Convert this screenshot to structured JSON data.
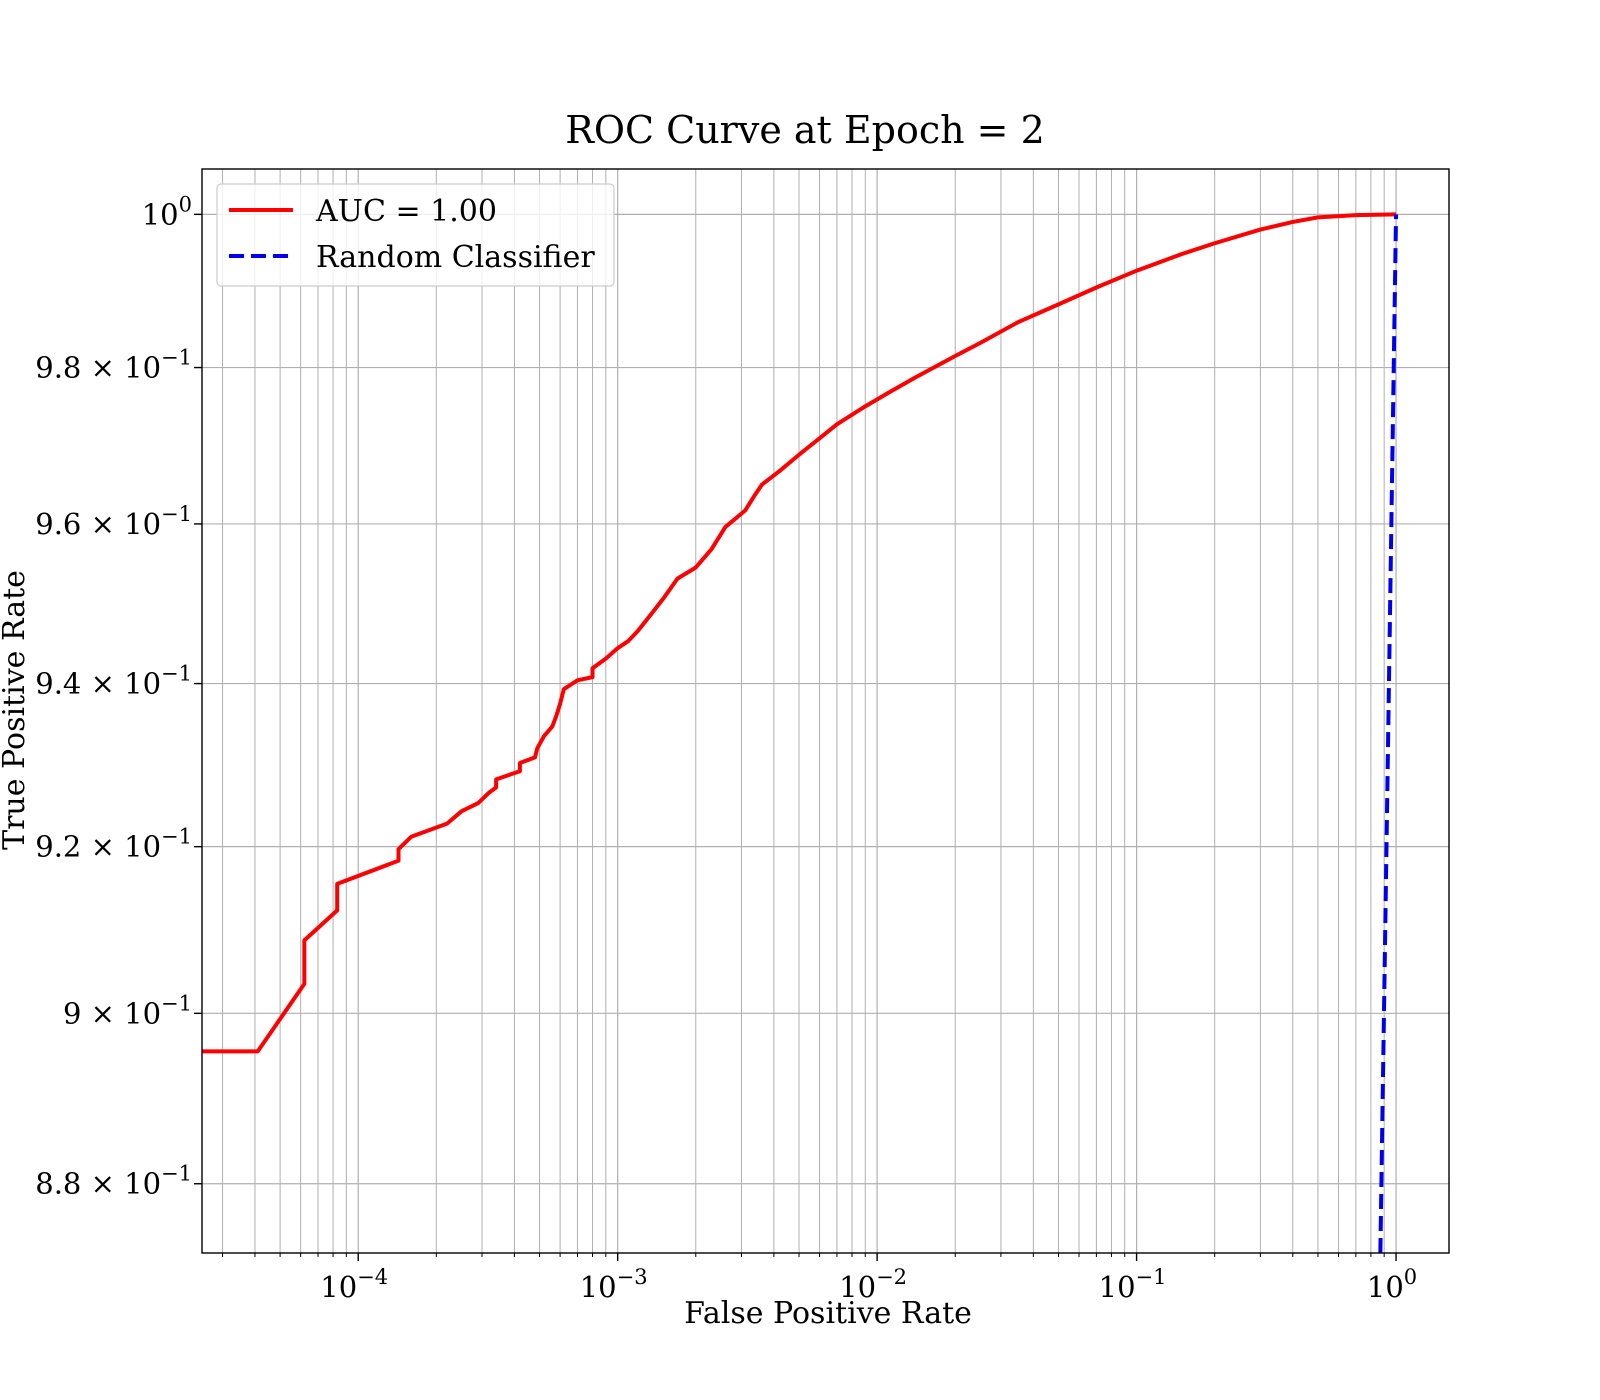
{
  "chart_data": {
    "type": "line",
    "title": "ROC Curve at Epoch = 2",
    "xlabel": "False Positive Rate",
    "ylabel": "True Positive Rate",
    "xscale": "log",
    "yscale": "log",
    "xlim": [
      2.5e-05,
      1.6
    ],
    "ylim": [
      0.872,
      1.006
    ],
    "grid": "both major and minor",
    "legend_position": "upper-left",
    "x_ticks": [
      {
        "value": 0.0001,
        "base": "10",
        "exp": "−4"
      },
      {
        "value": 0.001,
        "base": "10",
        "exp": "−3"
      },
      {
        "value": 0.01,
        "base": "10",
        "exp": "−2"
      },
      {
        "value": 0.1,
        "base": "10",
        "exp": "−1"
      },
      {
        "value": 1,
        "base": "10",
        "exp": "0"
      }
    ],
    "y_ticks": [
      {
        "value": 1.0,
        "mant": "",
        "base": "10",
        "exp": "0"
      },
      {
        "value": 0.98,
        "mant": "9.8 × ",
        "base": "10",
        "exp": "−1"
      },
      {
        "value": 0.96,
        "mant": "9.6 × ",
        "base": "10",
        "exp": "−1"
      },
      {
        "value": 0.94,
        "mant": "9.4 × ",
        "base": "10",
        "exp": "−1"
      },
      {
        "value": 0.92,
        "mant": "9.2 × ",
        "base": "10",
        "exp": "−1"
      },
      {
        "value": 0.9,
        "mant": "9 × ",
        "base": "10",
        "exp": "−1"
      },
      {
        "value": 0.88,
        "mant": "8.8 × ",
        "base": "10",
        "exp": "−1"
      }
    ],
    "series": [
      {
        "name": "AUC = 1.00",
        "color": "#ff0000",
        "style": "solid",
        "x": [
          2.5e-05,
          4.1e-05,
          6.2e-05,
          6.2e-05,
          8.3e-05,
          8.3e-05,
          0.000143,
          0.000143,
          0.00016,
          0.00022,
          0.00025,
          0.00029,
          0.00032,
          0.00034,
          0.00034,
          0.00042,
          0.00042,
          0.00048,
          0.00049,
          0.00052,
          0.00056,
          0.00058,
          0.0006,
          0.00062,
          0.0007,
          0.0008,
          0.0008,
          0.0009,
          0.001,
          0.0011,
          0.0012,
          0.00135,
          0.0015,
          0.0017,
          0.002,
          0.0023,
          0.0026,
          0.0031,
          0.0034,
          0.0036,
          0.0042,
          0.005,
          0.006,
          0.007,
          0.009,
          0.011,
          0.014,
          0.02,
          0.025,
          0.035,
          0.05,
          0.07,
          0.1,
          0.15,
          0.2,
          0.3,
          0.4,
          0.5,
          0.7,
          1.0
        ],
        "y": [
          0.8955,
          0.8955,
          0.9035,
          0.9087,
          0.9123,
          0.9155,
          0.9183,
          0.9197,
          0.9212,
          0.9228,
          0.9243,
          0.9253,
          0.9266,
          0.9272,
          0.9282,
          0.9292,
          0.9302,
          0.9309,
          0.932,
          0.9335,
          0.9347,
          0.936,
          0.9375,
          0.9393,
          0.9404,
          0.9408,
          0.9419,
          0.9431,
          0.9444,
          0.9453,
          0.9466,
          0.9487,
          0.9506,
          0.9531,
          0.9545,
          0.9568,
          0.9596,
          0.9617,
          0.9638,
          0.965,
          0.9667,
          0.9688,
          0.9709,
          0.9727,
          0.975,
          0.9767,
          0.9787,
          0.9815,
          0.9832,
          0.9859,
          0.9882,
          0.9904,
          0.9926,
          0.9948,
          0.9962,
          0.998,
          0.999,
          0.9996,
          0.9999,
          1.0
        ]
      },
      {
        "name": "Random Classifier",
        "color": "#0000ee",
        "style": "dashed",
        "x": [
          0.87,
          1.0
        ],
        "y": [
          0.872,
          1.0
        ]
      }
    ]
  }
}
